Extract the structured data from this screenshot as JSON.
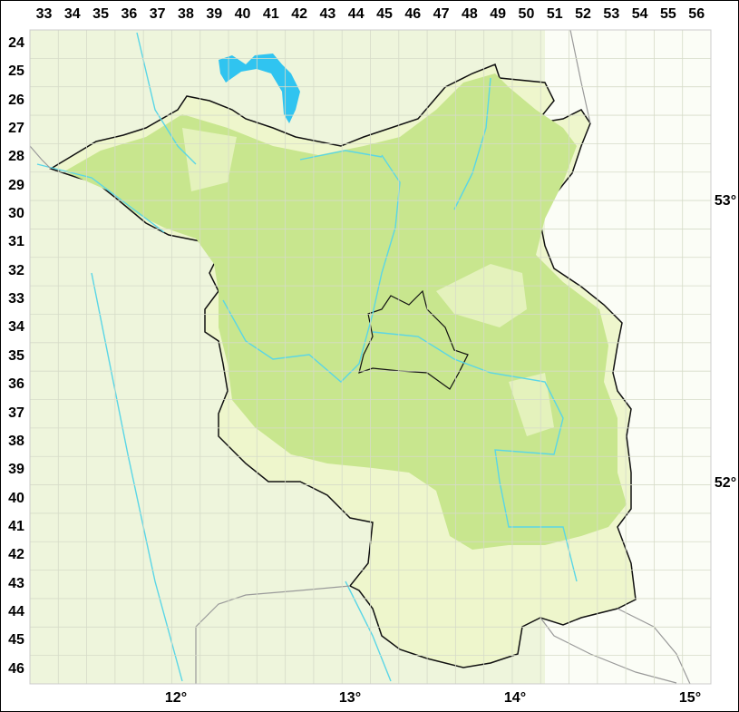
{
  "map": {
    "grid_columns": [
      "33",
      "34",
      "35",
      "36",
      "37",
      "38",
      "39",
      "40",
      "41",
      "42",
      "43",
      "44",
      "45",
      "46",
      "47",
      "48",
      "49",
      "50",
      "51",
      "52",
      "53",
      "54",
      "55",
      "56"
    ],
    "grid_rows": [
      "24",
      "25",
      "26",
      "27",
      "28",
      "29",
      "30",
      "31",
      "32",
      "33",
      "34",
      "35",
      "36",
      "37",
      "38",
      "39",
      "40",
      "41",
      "42",
      "43",
      "44",
      "45",
      "46"
    ],
    "longitude_labels": [
      "12°",
      "13°",
      "14°",
      "15°"
    ],
    "latitude_labels": [
      "53°",
      "52°"
    ],
    "colors": {
      "background": "#eef5dc",
      "region_light": "#eef6cc",
      "region_dense": "#c8e68e",
      "river": "#5ad6e6",
      "lake": "#30c4f0",
      "border": "#111111",
      "grid": "#d8dccc"
    }
  }
}
